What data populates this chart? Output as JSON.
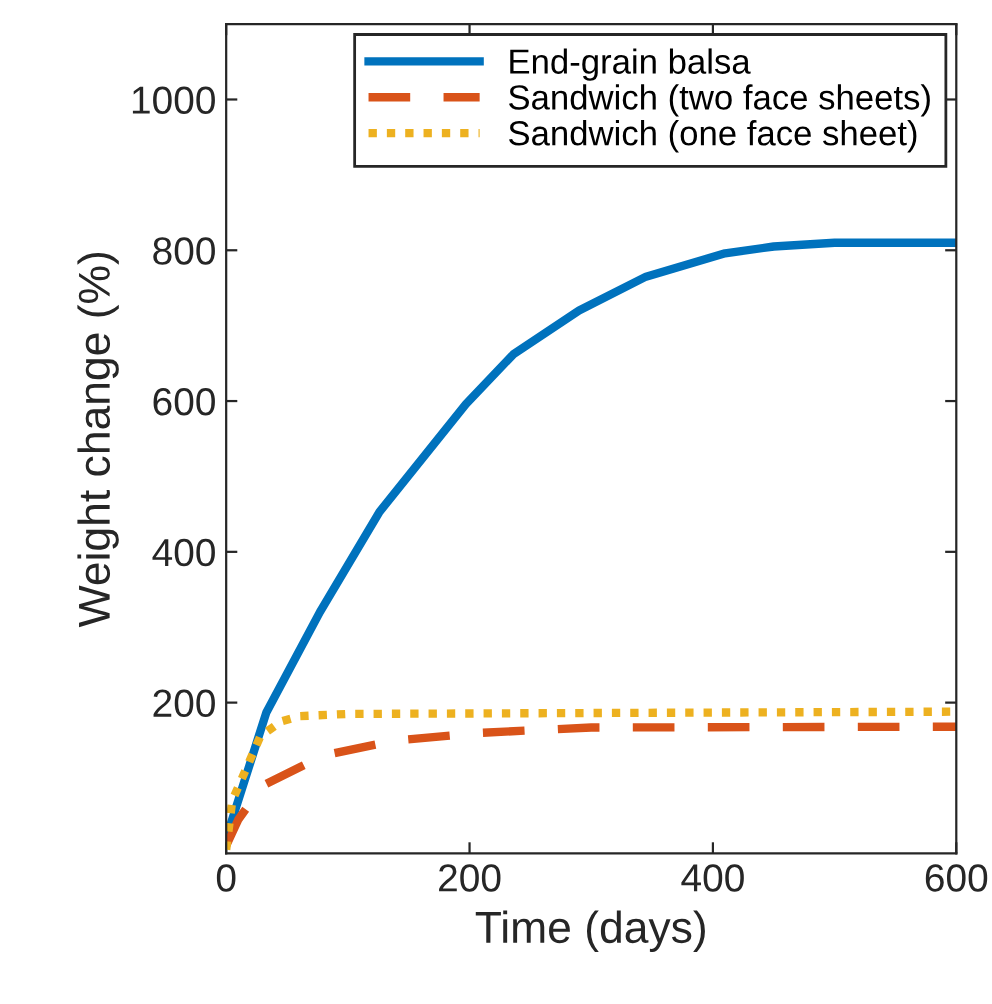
{
  "chart_data": {
    "type": "line",
    "xlabel": "Time (days)",
    "ylabel": "Weight change (%)",
    "xlim": [
      0,
      600
    ],
    "xticks": [
      0,
      200,
      400,
      600
    ],
    "ylim": [
      0,
      1100
    ],
    "yticks": [
      200,
      400,
      600,
      800,
      1000
    ],
    "grid": false,
    "legend": "top right",
    "series": [
      {
        "name": "End-grain balsa",
        "color": "#0072bd",
        "line_style": "solid",
        "x": [
          0,
          33,
          77,
          126,
          197,
          236,
          290,
          345,
          410,
          450,
          500,
          600
        ],
        "values": [
          20,
          187,
          320,
          453,
          596,
          662,
          720,
          765,
          796,
          805,
          810,
          810
        ]
      },
      {
        "name": "Sandwich (two face sheets)",
        "color": "#d95319",
        "line_style": "dashed",
        "x": [
          0,
          10,
          30,
          80,
          140,
          210,
          300,
          600
        ],
        "values": [
          10,
          45,
          90,
          130,
          150,
          160,
          167,
          168
        ]
      },
      {
        "name": "Sandwich (one face sheet)",
        "color": "#edb120",
        "line_style": "dotted",
        "x": [
          0,
          5,
          28,
          45,
          60,
          100,
          600
        ],
        "values": [
          5,
          70,
          155,
          175,
          182,
          185,
          188
        ]
      }
    ]
  }
}
